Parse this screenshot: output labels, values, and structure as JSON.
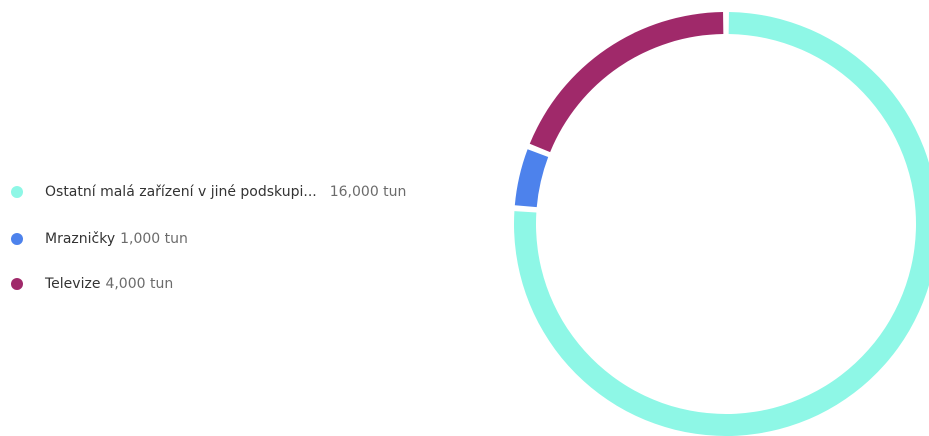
{
  "chart_data": {
    "type": "pie",
    "style": "donut",
    "legend_position": "left",
    "slices": [
      {
        "label": "Ostatní malá zařízení v jiné podskupi...",
        "value": 16000,
        "value_label": "16,000 tun",
        "color": "#8ef7e6"
      },
      {
        "label": "Mrazničky",
        "value": 1000,
        "value_label": "1,000 tun",
        "color": "#4d82ec"
      },
      {
        "label": "Televize",
        "value": 4000,
        "value_label": "4,000 tun",
        "color": "#a0296a"
      }
    ]
  }
}
